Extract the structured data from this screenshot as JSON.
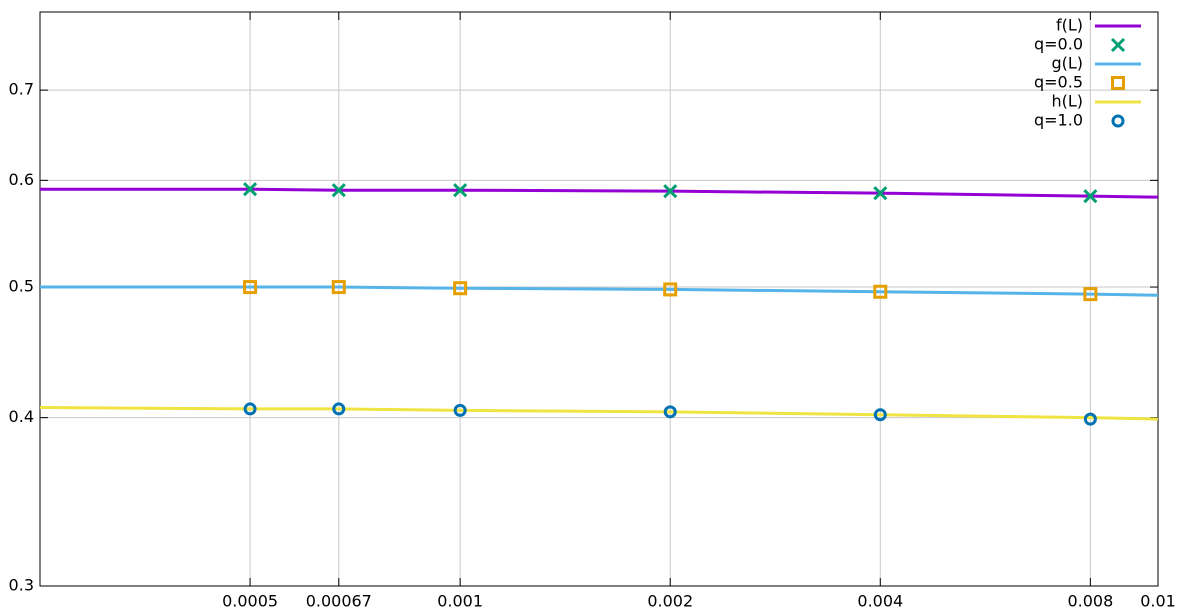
{
  "chart_data": {
    "type": "line",
    "xscale": "log",
    "yscale": "log",
    "grid": true,
    "legend": "top-right",
    "xlim": [
      0.00025,
      0.01
    ],
    "ylim": [
      0.3,
      0.8
    ],
    "xticks": [
      0.0005,
      0.00067,
      0.001,
      0.002,
      0.004,
      0.008,
      0.01
    ],
    "yticks": [
      0.3,
      0.4,
      0.5,
      0.6,
      0.7
    ],
    "series": [
      {
        "name": "f(L)",
        "color": "#9400d3",
        "style": "line",
        "x": [
          0.00025,
          0.0005,
          0.00067,
          0.001,
          0.002,
          0.004,
          0.008,
          0.01
        ],
        "values": [
          0.591,
          0.591,
          0.59,
          0.59,
          0.589,
          0.587,
          0.584,
          0.583
        ]
      },
      {
        "name": "q=0.0",
        "color": "#009e73",
        "style": "points",
        "marker": "x",
        "x": [
          0.0005,
          0.00067,
          0.001,
          0.002,
          0.004,
          0.008
        ],
        "values": [
          0.591,
          0.59,
          0.59,
          0.589,
          0.587,
          0.584
        ]
      },
      {
        "name": "g(L)",
        "color": "#56b4e9",
        "style": "line",
        "x": [
          0.00025,
          0.0005,
          0.00067,
          0.001,
          0.002,
          0.004,
          0.008,
          0.01
        ],
        "values": [
          0.5,
          0.5,
          0.5,
          0.499,
          0.498,
          0.496,
          0.494,
          0.493
        ]
      },
      {
        "name": "q=0.5",
        "color": "#e69f00",
        "style": "points",
        "marker": "square",
        "x": [
          0.0005,
          0.00067,
          0.001,
          0.002,
          0.004,
          0.008
        ],
        "values": [
          0.5,
          0.5,
          0.499,
          0.498,
          0.496,
          0.494
        ]
      },
      {
        "name": "h(L)",
        "color": "#f0e442",
        "style": "line",
        "x": [
          0.00025,
          0.0005,
          0.00067,
          0.001,
          0.002,
          0.004,
          0.008,
          0.01
        ],
        "values": [
          0.407,
          0.406,
          0.406,
          0.405,
          0.404,
          0.402,
          0.4,
          0.399
        ]
      },
      {
        "name": "q=1.0",
        "color": "#0072b2",
        "style": "points",
        "marker": "circle",
        "x": [
          0.0005,
          0.00067,
          0.001,
          0.002,
          0.004,
          0.008
        ],
        "values": [
          0.406,
          0.406,
          0.405,
          0.404,
          0.402,
          0.399
        ]
      }
    ]
  }
}
